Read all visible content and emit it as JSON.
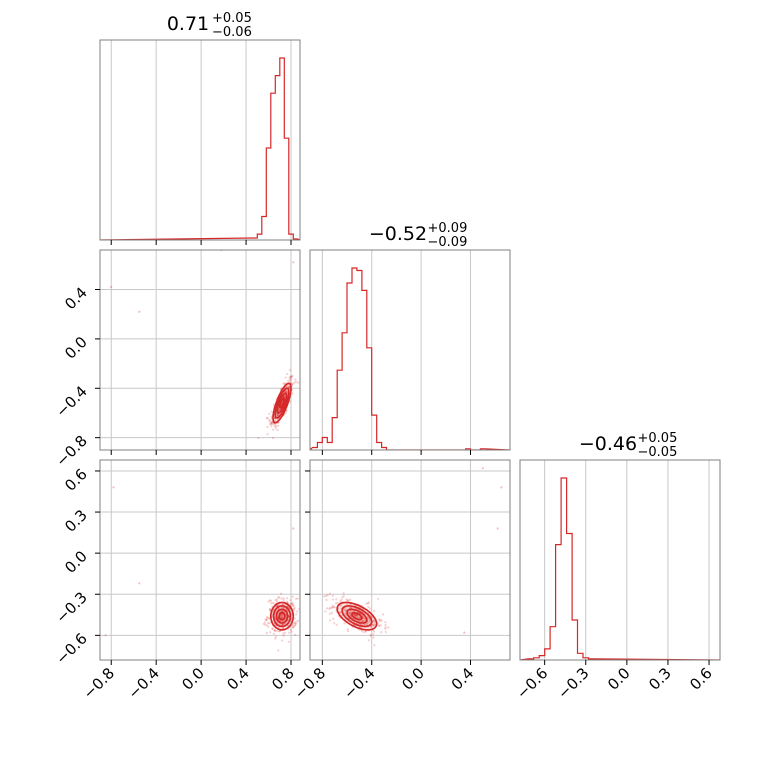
{
  "chart_data": {
    "type": "corner",
    "color": "#d62728",
    "grid": true,
    "parameters": [
      {
        "title": {
          "median": "0.71",
          "plus": "+0.05",
          "minus": "−0.06"
        },
        "range": [
          -0.9,
          0.88
        ],
        "ticks": [
          -0.8,
          -0.4,
          0.0,
          0.4,
          0.8
        ],
        "tick_labels": [
          "−0.8",
          "−0.4",
          "0.0",
          "0.4",
          "0.8"
        ],
        "hist": {
          "x": [
            0.48,
            0.52,
            0.56,
            0.6,
            0.64,
            0.68,
            0.72,
            0.76,
            0.8,
            0.84
          ],
          "density": [
            0.01,
            0.03,
            0.12,
            0.47,
            0.75,
            0.84,
            0.93,
            0.52,
            0.03,
            0.005
          ]
        }
      },
      {
        "title": {
          "median": "−0.52",
          "plus": "+0.09",
          "minus": "−0.09"
        },
        "range": [
          -0.9,
          0.72
        ],
        "ticks": [
          -0.8,
          -0.4,
          0.0,
          0.4
        ],
        "tick_labels": [
          "−0.8",
          "−0.4",
          "0.0",
          "0.4"
        ],
        "hist": {
          "x": [
            -0.86,
            -0.82,
            -0.78,
            -0.74,
            -0.7,
            -0.66,
            -0.62,
            -0.58,
            -0.54,
            -0.5,
            -0.46,
            -0.42,
            -0.38,
            -0.34,
            -0.3,
            0.38,
            0.5
          ],
          "density": [
            0.01,
            0.03,
            0.05,
            0.03,
            0.13,
            0.32,
            0.47,
            0.67,
            0.73,
            0.72,
            0.64,
            0.41,
            0.14,
            0.03,
            0.01,
            0.005,
            0.005
          ]
        }
      },
      {
        "title": {
          "median": "−0.46",
          "plus": "+0.05",
          "minus": "−0.05"
        },
        "range": [
          -0.78,
          0.68
        ],
        "ticks": [
          -0.6,
          -0.3,
          0.0,
          0.3,
          0.6
        ],
        "tick_labels": [
          "−0.6",
          "−0.3",
          "0.0",
          "0.3",
          "0.6"
        ],
        "hist": {
          "x": [
            -0.7,
            -0.66,
            -0.62,
            -0.58,
            -0.54,
            -0.5,
            -0.46,
            -0.42,
            -0.38,
            -0.34,
            -0.3,
            -0.26
          ],
          "density": [
            0.005,
            0.01,
            0.02,
            0.05,
            0.15,
            0.52,
            0.82,
            0.57,
            0.18,
            0.03,
            0.01,
            0.005
          ]
        }
      }
    ],
    "pairs": [
      {
        "x_param": 0,
        "y_param": 1,
        "center": [
          0.72,
          -0.52
        ],
        "sd": [
          0.04,
          0.08
        ],
        "rho": 0.75,
        "outliers": [
          [
            -0.8,
            0.42
          ],
          [
            -0.55,
            0.22
          ],
          [
            0.18,
            0.72
          ],
          [
            0.82,
            0.62
          ]
        ]
      },
      {
        "x_param": 0,
        "y_param": 2,
        "center": [
          0.72,
          -0.46
        ],
        "sd": [
          0.05,
          0.05
        ],
        "rho": 0.0,
        "outliers": [
          [
            -0.78,
            0.48
          ],
          [
            -0.55,
            -0.22
          ],
          [
            0.82,
            0.18
          ],
          [
            -0.85,
            -0.6
          ]
        ]
      },
      {
        "x_param": 1,
        "y_param": 2,
        "center": [
          -0.52,
          -0.46
        ],
        "sd": [
          0.08,
          0.05
        ],
        "rho": -0.55,
        "outliers": [
          [
            0.5,
            0.62
          ],
          [
            0.65,
            0.48
          ],
          [
            0.62,
            0.18
          ],
          [
            0.35,
            -0.58
          ]
        ]
      }
    ]
  }
}
